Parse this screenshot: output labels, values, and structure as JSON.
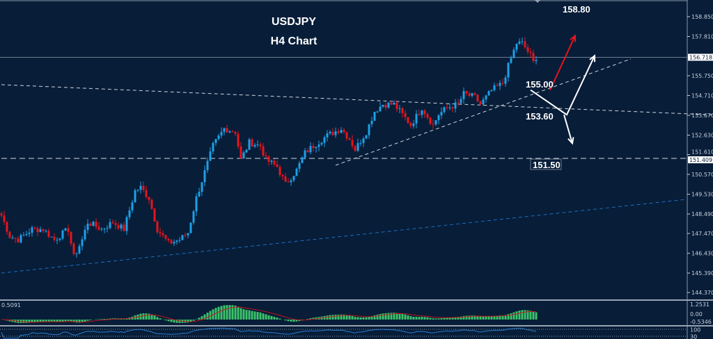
{
  "chart_data": {
    "type": "candlestick",
    "title": "USDJPY",
    "subtitle": "H4 Chart",
    "symbol": "USDJPY",
    "timeframe": "H4",
    "ylim": [
      144.0,
      159.3
    ],
    "y_ticks": [
      "158.850",
      "157.810",
      "155.750",
      "154.710",
      "153.670",
      "152.630",
      "151.610",
      "150.570",
      "149.530",
      "148.490",
      "147.470",
      "146.430",
      "145.390",
      "144.370"
    ],
    "current_price": "156.718",
    "marked_level": "151.409",
    "close_path": [
      [
        0,
        148.42
      ],
      [
        3,
        147.33
      ],
      [
        6,
        147.14
      ],
      [
        11,
        147.69
      ],
      [
        15,
        147.69
      ],
      [
        19,
        147.14
      ],
      [
        24,
        147.69
      ],
      [
        26,
        146.23
      ],
      [
        29,
        147.14
      ],
      [
        31,
        148.06
      ],
      [
        36,
        147.69
      ],
      [
        40,
        148.06
      ],
      [
        44,
        147.69
      ],
      [
        48,
        149.7
      ],
      [
        50,
        149.88
      ],
      [
        53,
        149.33
      ],
      [
        56,
        147.69
      ],
      [
        60,
        146.96
      ],
      [
        64,
        147.14
      ],
      [
        67,
        147.51
      ],
      [
        70,
        149.33
      ],
      [
        72,
        150.24
      ],
      [
        76,
        152.07
      ],
      [
        80,
        152.98
      ],
      [
        84,
        152.8
      ],
      [
        86,
        151.34
      ],
      [
        89,
        152.25
      ],
      [
        93,
        152.07
      ],
      [
        95,
        151.34
      ],
      [
        99,
        150.97
      ],
      [
        102,
        150.06
      ],
      [
        106,
        150.79
      ],
      [
        109,
        151.7
      ],
      [
        112,
        152.07
      ],
      [
        117,
        152.61
      ],
      [
        122,
        152.98
      ],
      [
        125,
        152.43
      ],
      [
        127,
        151.88
      ],
      [
        131,
        152.8
      ],
      [
        134,
        153.89
      ],
      [
        137,
        154.25
      ],
      [
        141,
        154.25
      ],
      [
        145,
        153.53
      ],
      [
        147,
        153.16
      ],
      [
        151,
        154.07
      ],
      [
        155,
        153.16
      ],
      [
        157,
        153.71
      ],
      [
        160,
        154.07
      ],
      [
        164,
        154.25
      ],
      [
        166,
        154.8
      ],
      [
        170,
        154.62
      ],
      [
        172,
        154.25
      ],
      [
        176,
        154.98
      ],
      [
        180,
        155.35
      ],
      [
        182,
        156.26
      ],
      [
        185,
        157.46
      ],
      [
        187,
        157.46
      ],
      [
        190,
        156.81
      ],
      [
        191,
        156.44
      ],
      [
        192,
        156.73
      ]
    ],
    "trendlines": [
      {
        "style": "dashed",
        "color": "#d0d6de",
        "from": [
          0,
          155.28
        ],
        "to": [
          259,
          153.67
        ]
      },
      {
        "style": "dashed",
        "color": "#d0d6de",
        "from": [
          120,
          151.05
        ],
        "to": [
          226,
          156.63
        ]
      },
      {
        "style": "dashed",
        "color": "#d0d6de",
        "from": [
          0,
          151.409
        ],
        "to": [
          246,
          151.409
        ]
      },
      {
        "style": "dashed",
        "color": "#1f6fc4",
        "from": [
          0,
          145.39
        ],
        "to": [
          246,
          149.26
        ]
      }
    ],
    "annotations": [
      {
        "text": "158.80",
        "color": "#ffffff"
      },
      {
        "text": "155.00",
        "color": "#ffffff"
      },
      {
        "text": "153.60",
        "color": "#ffffff"
      },
      {
        "text": "151.50",
        "color": "#ffffff",
        "boxed": true
      }
    ],
    "scenario_arrows": [
      {
        "color": "#e8141c",
        "path": [
          [
            197,
            155.0
          ],
          [
            206,
            157.85
          ]
        ]
      },
      {
        "color": "#ffffff",
        "path": [
          [
            190,
            155.0
          ],
          [
            203,
            153.7
          ],
          [
            213,
            156.8
          ]
        ]
      },
      {
        "color": "#ffffff",
        "path": [
          [
            202,
            153.7
          ],
          [
            205,
            152.2
          ]
        ]
      }
    ],
    "colors": {
      "background": "#071d38",
      "bull": "#1ea0e6",
      "bear": "#e8141c",
      "grid_line": "#8a96a6"
    },
    "macd_panel": {
      "label": "0.5091",
      "ticks": [
        "1.2531",
        "0.00",
        "-0.5346"
      ],
      "histogram_color": "#3cc46a",
      "signal_color": "#c4141c"
    },
    "oscillator_panel": {
      "ticks": [
        "100",
        "30"
      ],
      "line_color": "#2a7fd4"
    }
  }
}
